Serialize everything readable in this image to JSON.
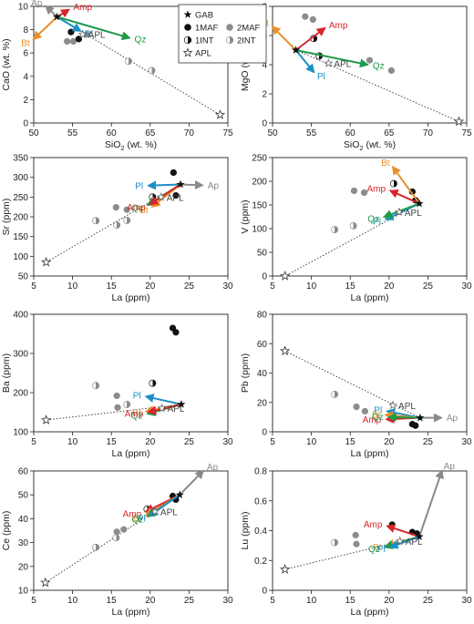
{
  "colors": {
    "Ap": "#8a8a8a",
    "Amp": "#d6262a",
    "Bt": "#e8902a",
    "Pl": "#1b8fc6",
    "Qz": "#1e9a4a",
    "APL": "#444444",
    "dark": "#111111",
    "grey": "#8c8c8c"
  },
  "legend": {
    "placement": "top-center",
    "entries": [
      {
        "symbol": "star",
        "label": "GAB"
      },
      {
        "symbol": "dot",
        "label": "1MAF"
      },
      {
        "symbol": "grey",
        "label": "2MAF"
      },
      {
        "symbol": "half",
        "label": "1INT"
      },
      {
        "symbol": "halfgrey",
        "label": "2INT"
      },
      {
        "symbol": "open-star",
        "label": "APL"
      }
    ]
  },
  "chart_data": [
    {
      "type": "scatter",
      "panel": "CaO vs SiO2",
      "xlabel_main": "SiO",
      "xlabel_sub": "2",
      "xlabel_tail": " (wt. %)",
      "ylabel": "CaO (wt. %)",
      "xlim": [
        50,
        75
      ],
      "ylim": [
        0,
        10
      ],
      "xticks": [
        50,
        55,
        60,
        65,
        70,
        75
      ],
      "yticks": [
        0,
        2,
        4,
        6,
        8,
        10
      ],
      "show_x_title": true,
      "GAB": [
        53.0,
        9.1
      ],
      "APL": [
        56.3,
        7.6
      ],
      "samples_1MAF": [
        [
          54.8,
          7.8
        ],
        [
          55.8,
          7.2
        ]
      ],
      "samples_2MAF": [
        [
          54.3,
          7.0
        ],
        [
          55.1,
          7.0
        ],
        [
          56.8,
          7.6
        ]
      ],
      "samples_1INT": [],
      "samples_2INT": [
        [
          62.2,
          5.3
        ],
        [
          65.2,
          4.5
        ]
      ],
      "APL_endmember": [
        74.0,
        0.7
      ],
      "vectors": [
        {
          "label": "Ap",
          "to": [
            51.6,
            10.0
          ]
        },
        {
          "label": "Amp",
          "to": [
            54.5,
            9.7
          ]
        },
        {
          "label": "Bt",
          "to": [
            50.0,
            7.2
          ]
        },
        {
          "label": "Pl",
          "to": [
            56.0,
            7.9
          ]
        },
        {
          "label": "Qz",
          "to": [
            62.3,
            7.3
          ]
        }
      ],
      "annotations": [
        "APL"
      ]
    },
    {
      "type": "scatter",
      "panel": "MgO vs SiO2",
      "xlabel_main": "SiO",
      "xlabel_sub": "2",
      "xlabel_tail": " (wt. %)",
      "ylabel": "MgO (wt. %)",
      "xlim": [
        50,
        75
      ],
      "ylim": [
        0,
        8
      ],
      "xticks": [
        50,
        55,
        60,
        65,
        70,
        75
      ],
      "yticks": [
        0,
        2,
        4,
        6,
        8
      ],
      "show_x_title": true,
      "GAB": [
        53.0,
        5.0
      ],
      "APL": [
        57.2,
        4.1
      ],
      "samples_1MAF": [],
      "samples_2MAF": [
        [
          54.2,
          7.3
        ],
        [
          55.2,
          7.1
        ],
        [
          62.5,
          4.3
        ],
        [
          65.3,
          3.6
        ]
      ],
      "samples_1INT": [
        [
          55.3,
          5.8
        ],
        [
          56.0,
          4.6
        ]
      ],
      "samples_2INT": [],
      "APL_endmember": [
        74.0,
        0.1
      ],
      "vectors": [
        {
          "label": "Bt",
          "to": [
            50.0,
            6.6
          ]
        },
        {
          "label": "Amp",
          "to": [
            56.7,
            6.5
          ]
        },
        {
          "label": "Pl",
          "to": [
            55.3,
            3.5
          ]
        },
        {
          "label": "Qz",
          "to": [
            62.2,
            4.0
          ]
        }
      ],
      "annotations": [
        "APL"
      ]
    },
    {
      "type": "scatter",
      "panel": "Sr vs La",
      "xlabel": "La (ppm)",
      "ylabel": "Sr (ppm)",
      "xlim": [
        5,
        30
      ],
      "ylim": [
        50,
        350
      ],
      "xticks": [
        5,
        10,
        15,
        20,
        25,
        30
      ],
      "yticks": [
        50,
        100,
        150,
        200,
        250,
        300,
        350
      ],
      "show_x_title": true,
      "GAB": [
        23.9,
        282
      ],
      "APL": [
        21.4,
        250
      ],
      "samples_1MAF": [
        [
          23.0,
          312
        ],
        [
          23.3,
          254
        ]
      ],
      "samples_2MAF": [
        [
          15.6,
          224
        ],
        [
          17.0,
          218
        ]
      ],
      "samples_1INT": [
        [
          20.3,
          250
        ]
      ],
      "samples_2INT": [
        [
          13.0,
          190
        ],
        [
          15.7,
          179
        ],
        [
          17.0,
          191
        ]
      ],
      "APL_endmember": [
        6.6,
        85
      ],
      "vectors": [
        {
          "label": "Ap",
          "to": [
            26.7,
            280
          ]
        },
        {
          "label": "Pl",
          "to": [
            19.8,
            279
          ]
        },
        {
          "label": "Qz",
          "to": [
            19.7,
            230
          ]
        },
        {
          "label": "Bt",
          "to": [
            20.3,
            226
          ]
        },
        {
          "label": "Amp",
          "to": [
            20.0,
            232
          ]
        }
      ],
      "annotations": [
        "APL"
      ]
    },
    {
      "type": "scatter",
      "panel": "V vs La",
      "xlabel": "La (ppm)",
      "ylabel": "V (ppm)",
      "xlim": [
        5,
        30
      ],
      "ylim": [
        0,
        250
      ],
      "xticks": [
        5,
        10,
        15,
        20,
        25,
        30
      ],
      "yticks": [
        0,
        50,
        100,
        150,
        200,
        250
      ],
      "show_x_title": true,
      "GAB": [
        23.9,
        153
      ],
      "APL": [
        21.3,
        135
      ],
      "samples_1MAF": [
        [
          23.0,
          178
        ],
        [
          23.4,
          160
        ]
      ],
      "samples_2MAF": [
        [
          15.5,
          180
        ],
        [
          16.8,
          176
        ]
      ],
      "samples_1INT": [
        [
          20.6,
          195
        ]
      ],
      "samples_2INT": [
        [
          13.0,
          98
        ],
        [
          15.4,
          106
        ]
      ],
      "APL_endmember": [
        6.6,
        0
      ],
      "vectors": [
        {
          "label": "Bt",
          "to": [
            20.5,
            230
          ]
        },
        {
          "label": "Amp",
          "to": [
            20.2,
            180
          ]
        },
        {
          "label": "Pl",
          "to": [
            19.6,
            120
          ]
        },
        {
          "label": "Qz",
          "to": [
            19.4,
            125
          ]
        }
      ],
      "annotations": [
        "APL"
      ]
    },
    {
      "type": "scatter",
      "panel": "Ba vs La",
      "xlabel": "La (ppm)",
      "ylabel": "Ba (ppm)",
      "xlim": [
        5,
        30
      ],
      "ylim": [
        100,
        400
      ],
      "xticks": [
        5,
        10,
        15,
        20,
        25,
        30
      ],
      "yticks": [
        100,
        200,
        300,
        400
      ],
      "show_x_title": true,
      "GAB": [
        24.0,
        170
      ],
      "APL": [
        21.5,
        160
      ],
      "samples_1MAF": [
        [
          22.9,
          365
        ],
        [
          23.3,
          354
        ]
      ],
      "samples_2MAF": [
        [
          15.7,
          192
        ],
        [
          15.8,
          162
        ]
      ],
      "samples_1INT": [
        [
          20.3,
          224
        ]
      ],
      "samples_2INT": [
        [
          13.0,
          218
        ],
        [
          17.0,
          170
        ]
      ],
      "APL_endmember": [
        6.6,
        130
      ],
      "vectors": [
        {
          "label": "Pl",
          "to": [
            19.5,
            190
          ]
        },
        {
          "label": "Bt",
          "to": [
            19.5,
            152
          ]
        },
        {
          "label": "Qz",
          "to": [
            19.7,
            146
          ]
        },
        {
          "label": "Amp",
          "to": [
            19.8,
            150
          ]
        }
      ],
      "annotations": [
        "APL"
      ]
    },
    {
      "type": "scatter",
      "panel": "Pb vs La",
      "xlabel": "La (ppm)",
      "ylabel": "Pb (ppm)",
      "xlim": [
        5,
        30
      ],
      "ylim": [
        0,
        80
      ],
      "xticks": [
        5,
        10,
        15,
        20,
        25,
        30
      ],
      "yticks": [
        0,
        20,
        40,
        60,
        80
      ],
      "show_x_title": true,
      "GAB": [
        24.0,
        9.5
      ],
      "APL": [
        20.5,
        18
      ],
      "samples_1MAF": [
        [
          23.0,
          5.2
        ],
        [
          23.4,
          4.2
        ]
      ],
      "samples_2MAF": [
        [
          15.8,
          17
        ],
        [
          16.9,
          14
        ]
      ],
      "samples_1INT": [
        [
          20.4,
          9.0
        ]
      ],
      "samples_2INT": [
        [
          13.0,
          25.5
        ]
      ],
      "APL_endmember": [
        6.6,
        55
      ],
      "vectors": [
        {
          "label": "Ap",
          "to": [
            26.7,
            9.5
          ]
        },
        {
          "label": "Pl",
          "to": [
            19.8,
            14
          ]
        },
        {
          "label": "Bt",
          "to": [
            19.6,
            11.5
          ]
        },
        {
          "label": "Amp",
          "to": [
            19.7,
            8.5
          ]
        },
        {
          "label": "Qz",
          "to": [
            20.0,
            10
          ]
        }
      ],
      "annotations": [
        "APL"
      ]
    },
    {
      "type": "scatter",
      "panel": "Ce vs La",
      "xlabel": "La (ppm)",
      "ylabel": "Ce (ppm)",
      "xlim": [
        5,
        30
      ],
      "ylim": [
        10,
        60
      ],
      "xticks": [
        5,
        10,
        15,
        20,
        25,
        30
      ],
      "yticks": [
        10,
        20,
        30,
        40,
        50,
        60
      ],
      "show_x_title": true,
      "GAB": [
        23.8,
        50
      ],
      "APL": [
        20.6,
        43
      ],
      "samples_1MAF": [
        [
          22.9,
          49.5
        ],
        [
          23.3,
          48
        ]
      ],
      "samples_2MAF": [
        [
          15.7,
          34.5
        ],
        [
          16.6,
          35.5
        ]
      ],
      "samples_1INT": [
        [
          19.6,
          44
        ]
      ],
      "samples_2INT": [
        [
          13.0,
          28
        ],
        [
          15.6,
          32
        ]
      ],
      "APL_endmember": [
        6.5,
        13.2
      ],
      "vectors": [
        {
          "label": "Ap",
          "to": [
            26.8,
            60
          ]
        },
        {
          "label": "Amp",
          "to": [
            19.5,
            43
          ]
        },
        {
          "label": "Bt",
          "to": [
            19.5,
            41.5
          ]
        },
        {
          "label": "Qz",
          "to": [
            19.7,
            41
          ]
        },
        {
          "label": "Pl",
          "to": [
            20.0,
            41.5
          ]
        }
      ],
      "annotations": [
        "APL"
      ]
    },
    {
      "type": "scatter",
      "panel": "Lu vs La",
      "xlabel": "La (ppm)",
      "ylabel": "Lu (ppm)",
      "xlim": [
        5,
        30
      ],
      "ylim": [
        0,
        0.8
      ],
      "xticks": [
        5,
        10,
        15,
        20,
        25,
        30
      ],
      "yticks": [
        0,
        0.2,
        0.4,
        0.6,
        0.8
      ],
      "ytick_labels": [
        "0",
        "0.2",
        "0.4",
        "0.6",
        "0.8"
      ],
      "show_x_title": true,
      "GAB": [
        23.9,
        0.36
      ],
      "APL": [
        21.4,
        0.33
      ],
      "samples_1MAF": [
        [
          20.4,
          0.44
        ],
        [
          23.0,
          0.39
        ],
        [
          23.6,
          0.38
        ]
      ],
      "samples_2MAF": [
        [
          15.7,
          0.37
        ],
        [
          15.8,
          0.31
        ]
      ],
      "samples_1INT": [],
      "samples_2INT": [
        [
          13.0,
          0.32
        ]
      ],
      "APL_endmember": [
        6.6,
        0.14
      ],
      "vectors": [
        {
          "label": "Ap",
          "to": [
            26.8,
            0.8
          ]
        },
        {
          "label": "Amp",
          "to": [
            19.8,
            0.43
          ]
        },
        {
          "label": "Bt",
          "to": [
            19.7,
            0.3
          ]
        },
        {
          "label": "Qz",
          "to": [
            19.5,
            0.29
          ]
        },
        {
          "label": "Pl",
          "to": [
            20.2,
            0.29
          ]
        }
      ],
      "annotations": [
        "APL"
      ]
    }
  ]
}
